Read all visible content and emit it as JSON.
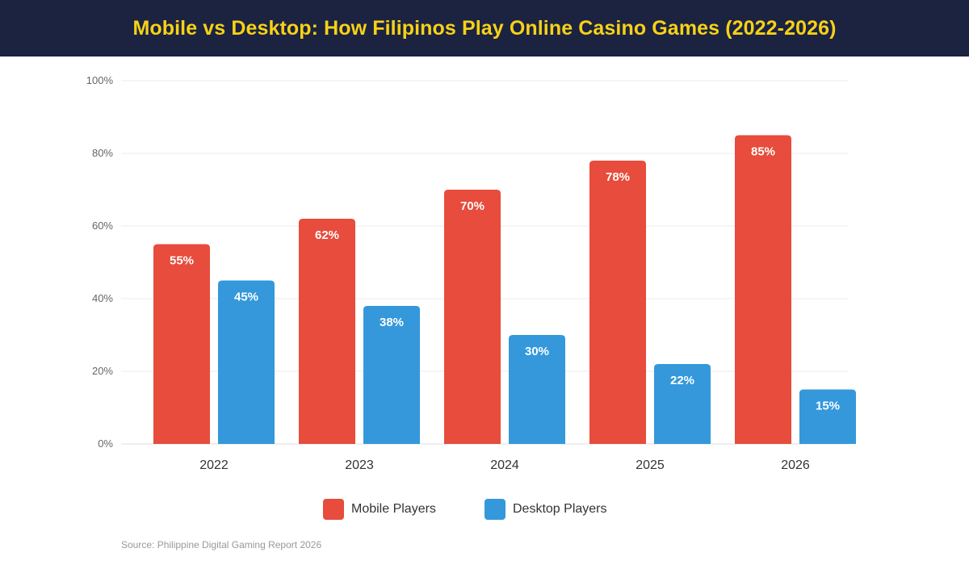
{
  "header": {
    "title": "Mobile vs Desktop: How Filipinos Play Online Casino Games (2022-2026)"
  },
  "chart_data": {
    "type": "bar",
    "title": "Mobile vs Desktop: How Filipinos Play Online Casino Games (2022-2026)",
    "categories": [
      "2022",
      "2023",
      "2024",
      "2025",
      "2026"
    ],
    "series": [
      {
        "name": "Mobile Players",
        "color": "#e74c3c",
        "values": [
          55,
          62,
          70,
          78,
          85
        ]
      },
      {
        "name": "Desktop Players",
        "color": "#3498db",
        "values": [
          45,
          38,
          30,
          22,
          15
        ]
      }
    ],
    "ylim": [
      0,
      100
    ],
    "yticks": [
      0,
      20,
      40,
      60,
      80,
      100
    ],
    "ytick_suffix": "%",
    "value_label_suffix": "%",
    "grid": true,
    "legend": "bottom-center"
  },
  "footer": {
    "source": "Source: Philippine Digital Gaming Report 2026"
  }
}
